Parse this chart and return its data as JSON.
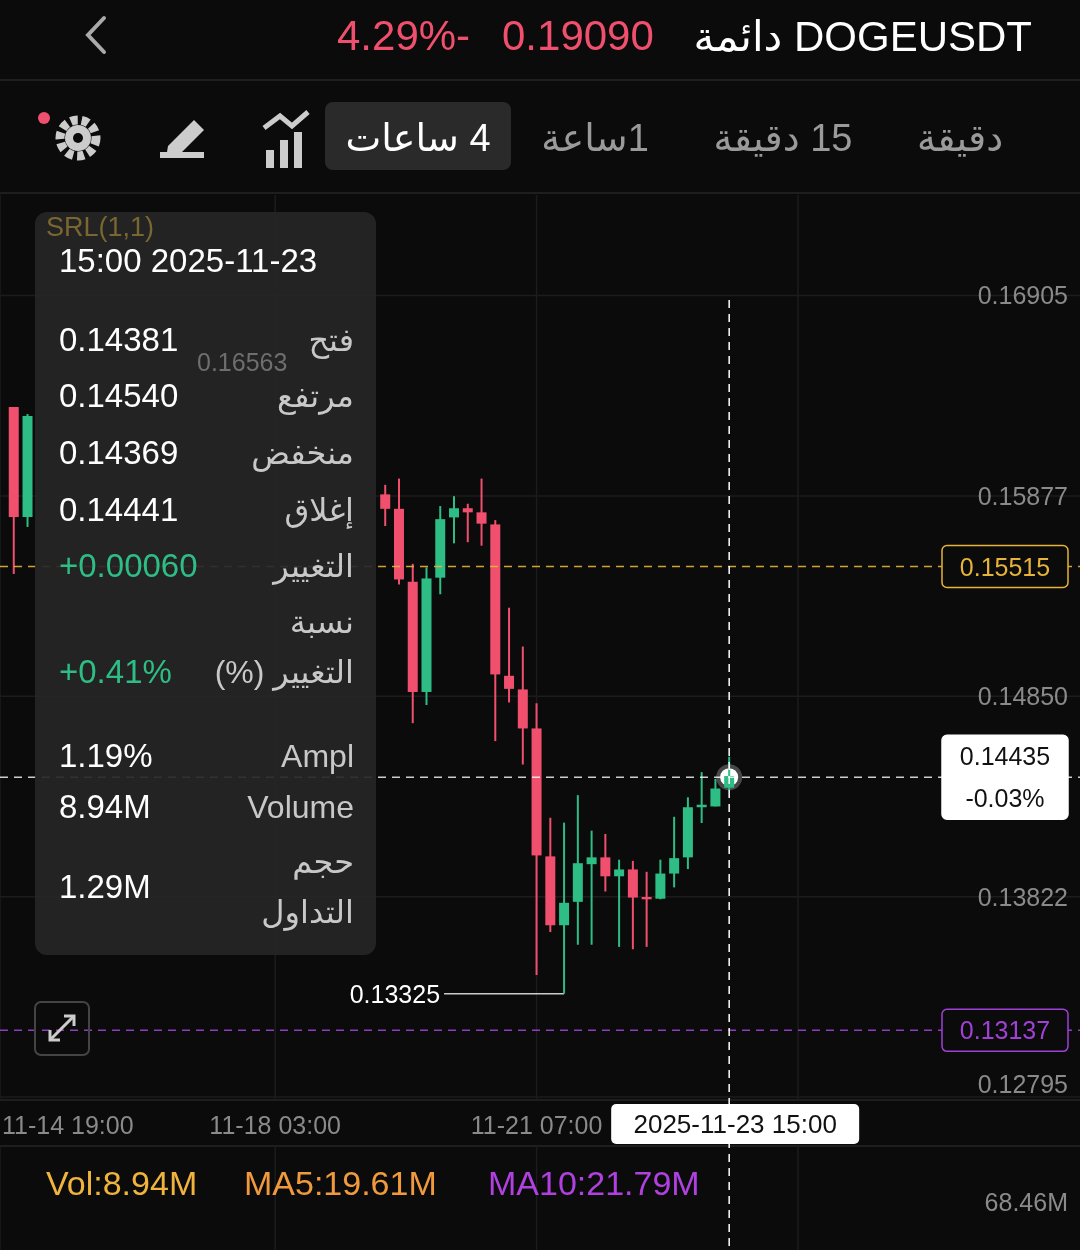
{
  "chart_data": {
    "type": "candlestick",
    "title": "DOGEUSDT دائمة",
    "annotations": [
      "0.19090",
      "4.29%-",
      "دقيقة",
      "15 دقيقة",
      "1ساعة",
      "4 ساعات",
      "SRL(1,1)",
      "15:00 2025-11-23",
      "فتح",
      "0.14381",
      "مرتفع",
      "0.14540",
      "منخفض",
      "0.14369",
      "إغلاق",
      "0.14441",
      "التغيير",
      "+0.00060",
      "نسبة التغيير (%)",
      "+0.41%",
      "Ampl",
      "1.19%",
      "Volume",
      "8.94M",
      "حجم التداول",
      "1.29M",
      "0.16563",
      "Vol:8.94M",
      "MA5:19.61M",
      "MA10:21.79M",
      "68.46M",
      {
        "text": "0.13325",
        "x": "2025-11-21T15:00",
        "y": 0.13325
      }
    ],
    "x": [
      "2025-11-14T23:00",
      "2025-11-15T03:00",
      "2025-11-19T11:00",
      "2025-11-19T15:00",
      "2025-11-19T19:00",
      "2025-11-19T23:00",
      "2025-11-20T03:00",
      "2025-11-20T07:00",
      "2025-11-20T11:00",
      "2025-11-20T15:00",
      "2025-11-20T19:00",
      "2025-11-20T23:00",
      "2025-11-21T03:00",
      "2025-11-21T07:00",
      "2025-11-21T11:00",
      "2025-11-21T15:00",
      "2025-11-21T19:00",
      "2025-11-21T23:00",
      "2025-11-22T03:00",
      "2025-11-22T07:00",
      "2025-11-22T11:00",
      "2025-11-22T15:00",
      "2025-11-22T19:00",
      "2025-11-22T23:00",
      "2025-11-23T03:00",
      "2025-11-23T07:00",
      "2025-11-23T11:00",
      "2025-11-23T15:00"
    ],
    "ohlc": [
      [
        0.16333,
        0.16333,
        0.15477,
        0.15769
      ],
      [
        0.15769,
        0.16297,
        0.15718,
        0.16287
      ],
      [
        0.15885,
        0.15934,
        0.15723,
        0.15811
      ],
      [
        0.15811,
        0.15966,
        0.15423,
        0.15449
      ],
      [
        0.15437,
        0.15529,
        0.14712,
        0.14872
      ],
      [
        0.14872,
        0.15511,
        0.14805,
        0.15454
      ],
      [
        0.15458,
        0.15825,
        0.15373,
        0.15758
      ],
      [
        0.15767,
        0.15876,
        0.15634,
        0.15814
      ],
      [
        0.15814,
        0.15837,
        0.1564,
        0.15793
      ],
      [
        0.15793,
        0.15966,
        0.15622,
        0.15735
      ],
      [
        0.15731,
        0.15753,
        0.1462,
        0.14962
      ],
      [
        0.14955,
        0.15304,
        0.14818,
        0.14888
      ],
      [
        0.14885,
        0.15105,
        0.145,
        0.14685
      ],
      [
        0.14685,
        0.14814,
        0.13421,
        0.14034
      ],
      [
        0.14029,
        0.14227,
        0.13641,
        0.13676
      ],
      [
        0.13676,
        0.14202,
        0.13325,
        0.13791
      ],
      [
        0.13796,
        0.14343,
        0.13576,
        0.13994
      ],
      [
        0.13989,
        0.14161,
        0.13576,
        0.14024
      ],
      [
        0.14024,
        0.14144,
        0.13849,
        0.13927
      ],
      [
        0.13927,
        0.14012,
        0.13565,
        0.13962
      ],
      [
        0.13962,
        0.14006,
        0.13553,
        0.13818
      ],
      [
        0.13821,
        0.1395,
        0.13565,
        0.13809
      ],
      [
        0.13812,
        0.14012,
        0.13809,
        0.13941
      ],
      [
        0.13941,
        0.14232,
        0.1387,
        0.1402
      ],
      [
        0.14024,
        0.14332,
        0.13964,
        0.14281
      ],
      [
        0.14281,
        0.14461,
        0.142,
        0.14294
      ],
      [
        0.14285,
        0.14426,
        0.14285,
        0.14377
      ],
      [
        0.14381,
        0.1454,
        0.14369,
        0.14441
      ]
    ],
    "colors": [
      "#f0506e",
      "#2ebd85",
      "#f0506e",
      "#f0506e",
      "#f0506e",
      "#2ebd85",
      "#2ebd85",
      "#2ebd85",
      "#f0506e",
      "#f0506e",
      "#f0506e",
      "#f0506e",
      "#f0506e",
      "#f0506e",
      "#f0506e",
      "#2ebd85",
      "#2ebd85",
      "#2ebd85",
      "#f0506e",
      "#2ebd85",
      "#f0506e",
      "#f0506e",
      "#2ebd85",
      "#2ebd85",
      "#2ebd85",
      "#2ebd85",
      "#2ebd85",
      "#2ebd85"
    ],
    "xlim": [
      "2025-11-14T19:00",
      "2025-11-27T21:00"
    ],
    "ylim": [
      0.1278,
      0.1742
    ],
    "yticks": [
      0.16905,
      0.15877,
      {
        "value": 0.1485,
        "label": "0.14850"
      },
      0.13822,
      0.12795
    ],
    "xticks": [
      {
        "value": "2025-11-14T19:00",
        "label": "11-14 19:00"
      },
      {
        "value": "2025-11-18T03:00",
        "label": "11-18 03:00"
      },
      {
        "value": "2025-11-21T07:00",
        "label": "11-21 07:00"
      },
      {
        "value": "2025-11-24T11:00",
        "label": null
      }
    ],
    "ref_lines": [
      {
        "axis": "y",
        "value": 0.15515,
        "label": "0.15515",
        "color": "#e8b339",
        "line_style": "dashed"
      },
      {
        "axis": "y",
        "value": 0.13137,
        "label": "0.13137",
        "color": "#a040d8",
        "line_style": "dashed"
      },
      {
        "axis": "y",
        "value": 0.14435,
        "label": "0.14435\n-0.03%",
        "color": "#ffffff",
        "line_style": "dashed"
      },
      {
        "axis": "x",
        "value": "2025-11-23T15:00",
        "label": "2025-11-23 15:00",
        "color": "#ffffff",
        "line_style": "dashed"
      }
    ],
    "grid": true
  }
}
